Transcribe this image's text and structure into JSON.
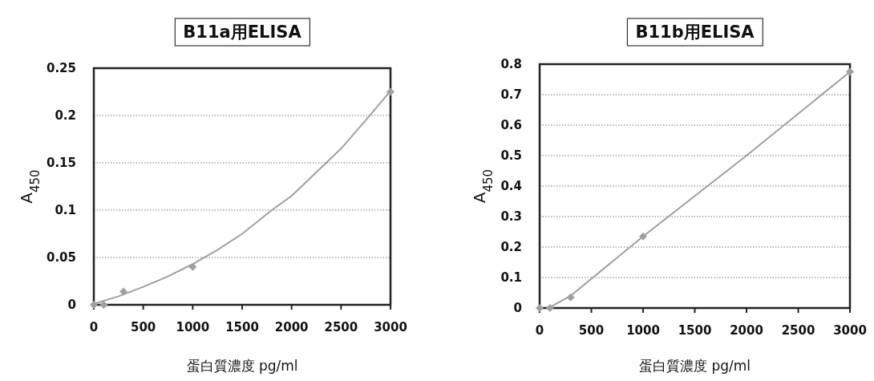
{
  "chart_data": [
    {
      "type": "scatter",
      "title": "B11a用ELISA",
      "xlabel": "蛋白質濃度 pg/ml",
      "ylabel": "A$_{450}$",
      "xlim": [
        0,
        3000
      ],
      "ylim": [
        0,
        0.25
      ],
      "xticks": [
        0,
        500,
        1000,
        1500,
        2000,
        2500,
        3000
      ],
      "yticks": [
        0,
        0.05,
        0.1,
        0.15,
        0.2,
        0.25
      ],
      "grid": "y",
      "series": [
        {
          "color": "#a0a0a0",
          "marker": "diamond",
          "x": [
            0,
            100,
            300,
            1000,
            3000
          ],
          "values": [
            0,
            0,
            0.014,
            0.04,
            0.225
          ]
        },
        {
          "type": "line",
          "marker": "none",
          "color": "#a0a0a0",
          "x": [
            0,
            250,
            500,
            750,
            1000,
            1250,
            1500,
            1800,
            2000,
            2250,
            2500,
            2750,
            3000
          ],
          "values": [
            0.001,
            0.009,
            0.019,
            0.03,
            0.043,
            0.058,
            0.075,
            0.1,
            0.115,
            0.14,
            0.165,
            0.195,
            0.226
          ]
        }
      ]
    },
    {
      "type": "scatter",
      "title": "B11b用ELISA",
      "xlabel": "蛋白質濃度 pg/ml",
      "ylabel": "A$_{450}$",
      "xlim": [
        0,
        3000
      ],
      "ylim": [
        0,
        0.8
      ],
      "xticks": [
        0,
        500,
        1000,
        1500,
        2000,
        2500,
        3000
      ],
      "yticks": [
        0,
        0.1,
        0.2,
        0.3,
        0.4,
        0.5,
        0.6,
        0.7,
        0.8
      ],
      "grid": "y",
      "series": [
        {
          "color": "#a0a0a0",
          "marker": "diamond",
          "x": [
            0,
            100,
            300,
            1000,
            3000
          ],
          "values": [
            0,
            0,
            0.035,
            0.235,
            0.775
          ]
        },
        {
          "type": "line",
          "marker": "none",
          "color": "#a0a0a0",
          "x": [
            100,
            300,
            1000,
            2000,
            3000
          ],
          "values": [
            0.003,
            0.04,
            0.235,
            0.5,
            0.775
          ]
        }
      ]
    }
  ]
}
